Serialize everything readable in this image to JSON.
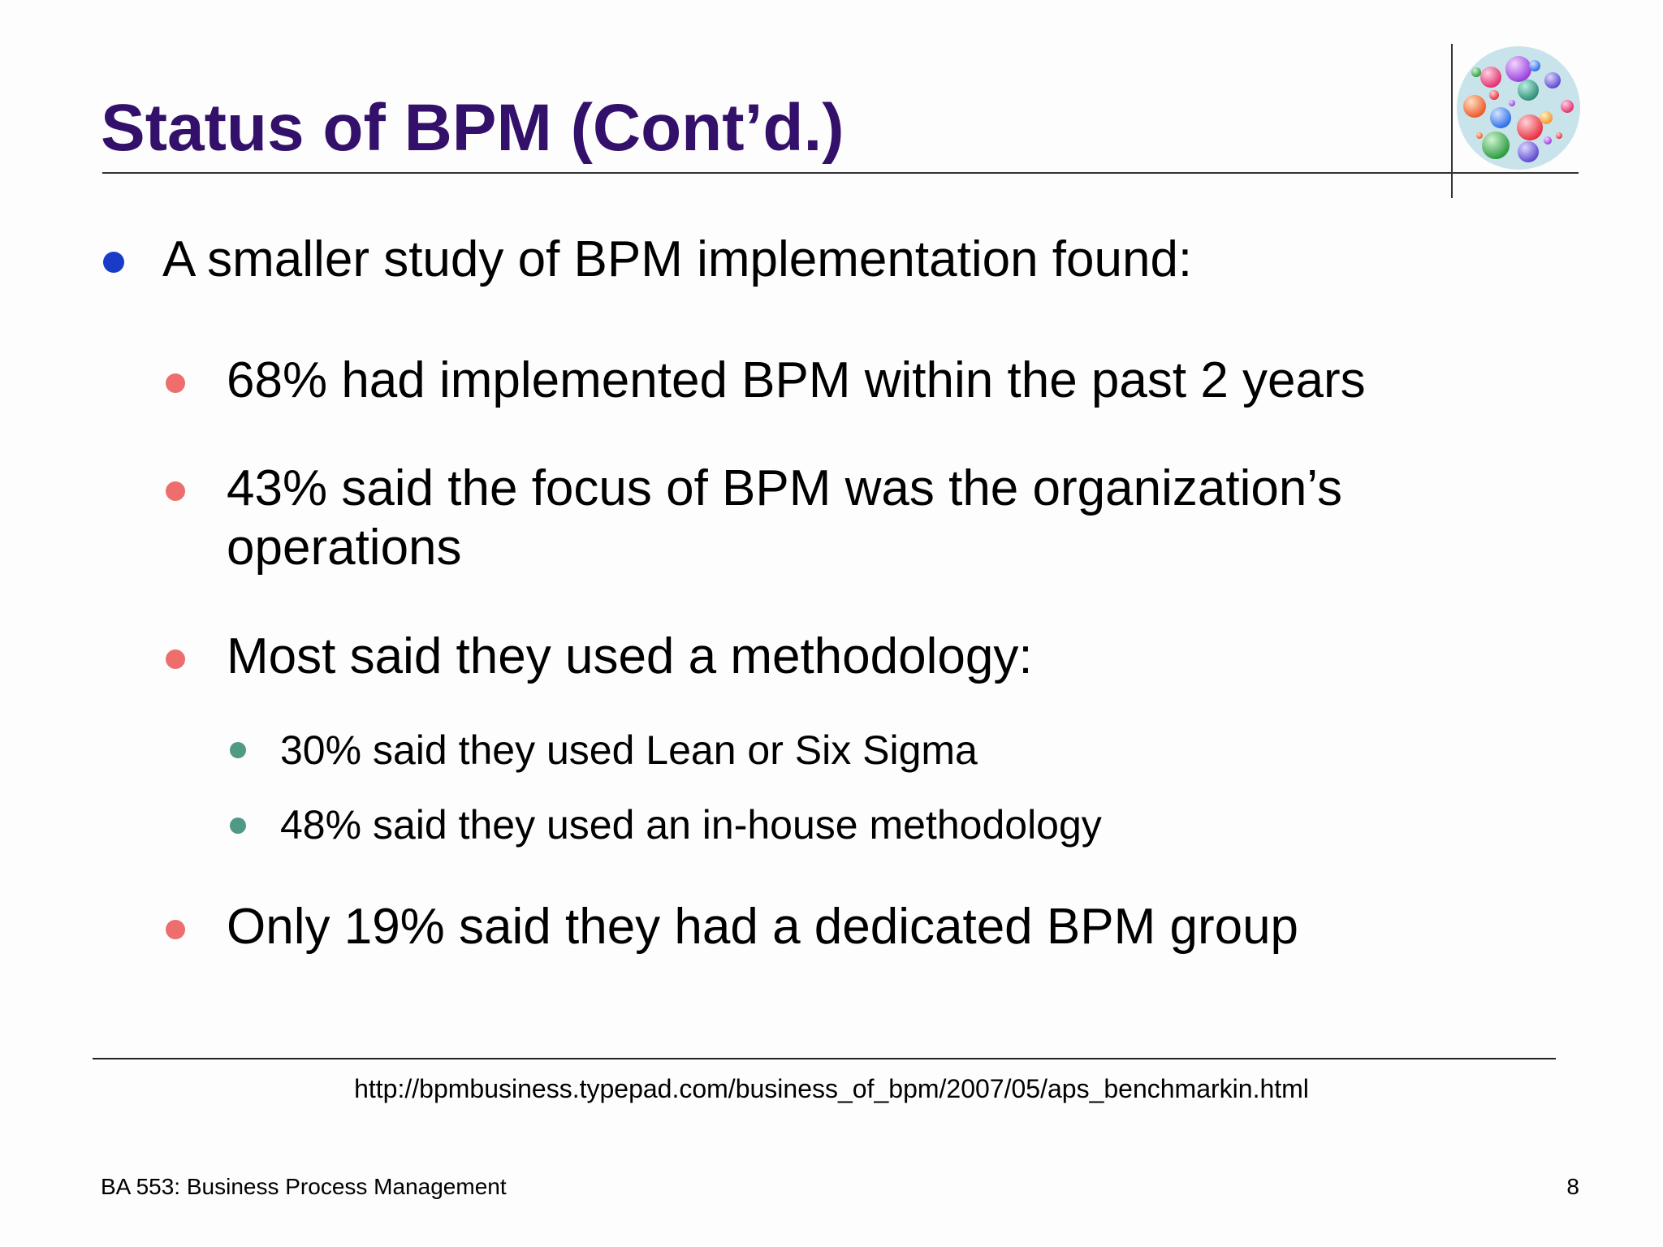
{
  "slide": {
    "title": "Status of BPM (Cont’d.)",
    "bullets": [
      {
        "text": "A smaller study of BPM implementation found:"
      },
      {
        "text": "68% had implemented BPM within the past 2 years"
      },
      {
        "line1": "43% said the focus of BPM was the organization’s",
        "line2": "operations"
      },
      {
        "text": "Most said they used a methodology:"
      },
      {
        "text": "30% said they used Lean or Six Sigma"
      },
      {
        "text": "48% said they used an in-house methodology"
      },
      {
        "text": "Only 19% said they had a dedicated BPM group"
      }
    ],
    "source_url": "http://bpmbusiness.typepad.com/business_of_bpm/2007/05/aps_benchmarkin.html",
    "footer": {
      "course": "BA 553: Business Process Management",
      "page_number": "8"
    }
  },
  "logo": {
    "icon": "bubbles-logo-icon",
    "colors": [
      "#c9e3ea",
      "#e8407a",
      "#a64fe0",
      "#3a9e8a",
      "#f06a3c",
      "#3d7ef0",
      "#ee3f4f",
      "#3da24b",
      "#6a5ad8",
      "#f2a33a"
    ]
  },
  "colors": {
    "title": "#33106a",
    "bullet_level1": "#1a3ac8",
    "bullet_level2": "#ee6e6e",
    "bullet_level3": "#4f9985"
  }
}
